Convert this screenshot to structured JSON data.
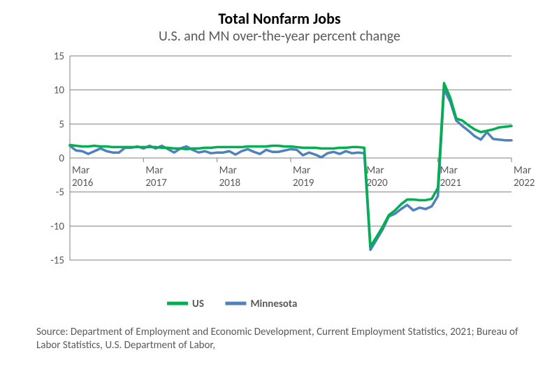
{
  "chart": {
    "type": "line",
    "title": "Total Nonfarm Jobs",
    "title_fontsize": 22,
    "title_color": "#000000",
    "subtitle": "U.S. and MN over-the-year percent change",
    "subtitle_fontsize": 20,
    "subtitle_color": "#595959",
    "background_color": "#ffffff",
    "plot_background": "#ffffff",
    "grid_color": "#808080",
    "axis_color": "#808080",
    "tick_font_color": "#595959",
    "tick_fontsize": 15,
    "ylim": [
      -15,
      15
    ],
    "ytick_step": 5,
    "yticks": [
      -15,
      -10,
      -5,
      0,
      5,
      10,
      15
    ],
    "x_index_range": [
      0,
      72
    ],
    "x_major_ticks": [
      0,
      12,
      24,
      36,
      48,
      60,
      72
    ],
    "x_tick_labels": {
      "line1": [
        "Mar",
        "Mar",
        "Mar",
        "Mar",
        "Mar",
        "Mar",
        "Mar"
      ],
      "line2": [
        "2016",
        "2017",
        "2018",
        "2019",
        "2020",
        "2021",
        "2022"
      ]
    },
    "legend": {
      "position": "bottom",
      "items": [
        {
          "key": "us",
          "label": "US",
          "color": "#00b050"
        },
        {
          "key": "mn",
          "label": "Minnesota",
          "color": "#4f81bd"
        }
      ],
      "fontsize": 15,
      "font_weight": "bold",
      "line_thickness": 5
    },
    "series": {
      "us": {
        "label": "US",
        "color": "#00b050",
        "line_width": 3.5,
        "values": [
          1.9,
          1.8,
          1.7,
          1.7,
          1.8,
          1.7,
          1.7,
          1.6,
          1.6,
          1.6,
          1.6,
          1.6,
          1.6,
          1.6,
          1.6,
          1.5,
          1.5,
          1.4,
          1.4,
          1.3,
          1.4,
          1.4,
          1.5,
          1.5,
          1.6,
          1.6,
          1.6,
          1.6,
          1.6,
          1.7,
          1.7,
          1.7,
          1.7,
          1.8,
          1.8,
          1.7,
          1.7,
          1.6,
          1.5,
          1.5,
          1.5,
          1.4,
          1.4,
          1.4,
          1.5,
          1.5,
          1.6,
          1.6,
          1.5,
          -13.0,
          -11.6,
          -10.1,
          -8.4,
          -7.7,
          -6.8,
          -6.1,
          -6.1,
          -6.2,
          -6.2,
          -6.0,
          -4.4,
          11.0,
          8.9,
          5.8,
          5.5,
          4.8,
          4.2,
          3.8,
          4.0,
          4.2,
          4.5,
          4.6,
          4.7
        ]
      },
      "mn": {
        "label": "Minnesota",
        "color": "#4f81bd",
        "line_width": 3.5,
        "values": [
          1.8,
          1.1,
          1.0,
          0.6,
          1.0,
          1.4,
          1.0,
          0.8,
          0.8,
          1.5,
          1.5,
          1.7,
          1.4,
          1.8,
          1.4,
          1.8,
          1.3,
          0.8,
          1.4,
          1.7,
          1.2,
          0.8,
          1.0,
          0.7,
          0.8,
          0.8,
          1.0,
          0.5,
          1.0,
          1.3,
          0.9,
          0.6,
          1.2,
          0.9,
          0.9,
          1.1,
          1.3,
          1.2,
          0.4,
          0.8,
          0.5,
          0.1,
          0.7,
          0.9,
          0.6,
          1.0,
          0.7,
          0.8,
          0.7,
          -13.5,
          -12.0,
          -10.5,
          -8.6,
          -8.2,
          -7.5,
          -6.9,
          -7.7,
          -7.3,
          -7.5,
          -7.1,
          -5.6,
          10.1,
          8.3,
          5.5,
          4.7,
          4.0,
          3.2,
          2.7,
          3.8,
          2.8,
          2.7,
          2.6,
          2.6
        ]
      }
    },
    "source": "Source: Department of Employment and Economic Development, Current Employment Statistics, 2021; Bureau of Labor Statistics, U.S. Department of Labor,",
    "source_fontsize": 15
  }
}
